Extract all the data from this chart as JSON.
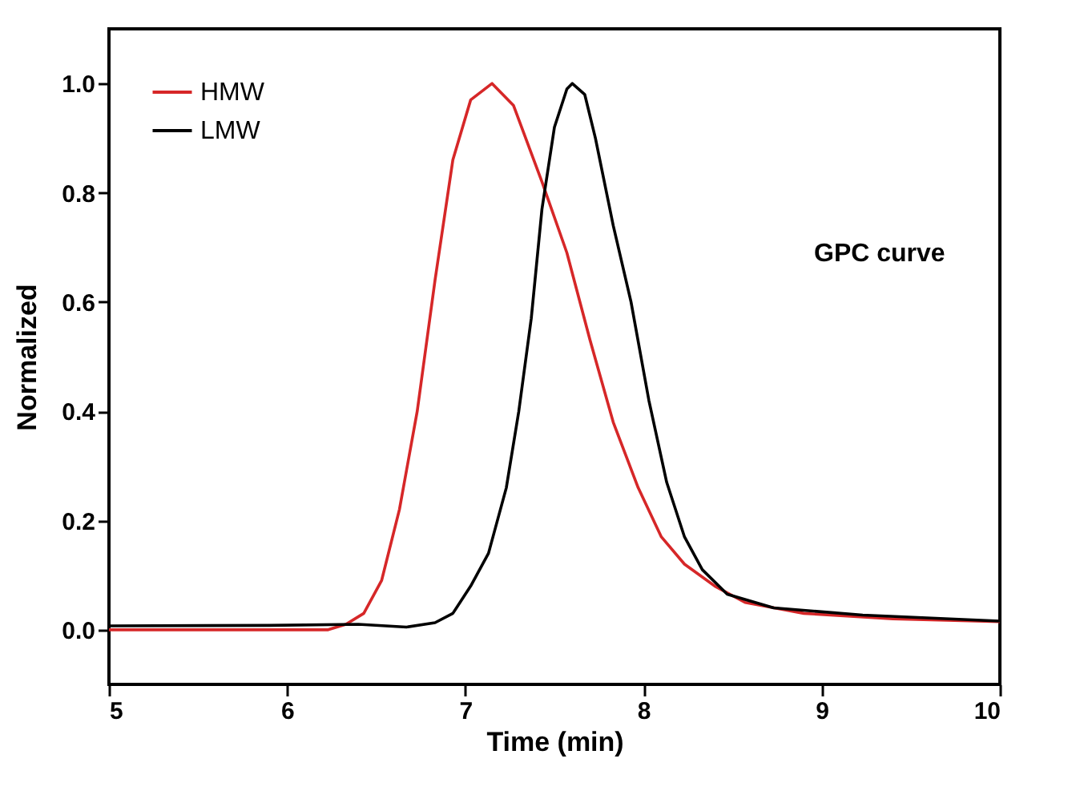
{
  "chart_data": {
    "type": "line",
    "xlabel": "Time (min)",
    "ylabel": "Normalized",
    "xlim": [
      5,
      10
    ],
    "xticks": [
      5,
      6,
      7,
      8,
      9,
      10
    ],
    "ylim": [
      -0.1,
      1.1
    ],
    "yticks": [
      {
        "value": 0,
        "label": "0.0"
      },
      {
        "value": 0.2,
        "label": "0.2"
      },
      {
        "value": 0.4,
        "label": "0.4"
      },
      {
        "value": 0.6,
        "label": "0.6"
      },
      {
        "value": 0.8,
        "label": "0.8"
      },
      {
        "value": 1,
        "label": "1.0"
      }
    ],
    "grid": false,
    "legend": "top left",
    "line_style": "solid",
    "marker": "none",
    "annotations": [
      "GPC curve"
    ],
    "series": [
      {
        "name": "HMW",
        "color": "#d62728",
        "x": [
          5.0,
          6.23,
          6.33,
          6.43,
          6.53,
          6.63,
          6.73,
          6.83,
          6.93,
          7.03,
          7.15,
          7.27,
          7.43,
          7.57,
          7.7,
          7.83,
          7.97,
          8.1,
          8.23,
          8.4,
          8.57,
          8.9,
          9.4,
          10.0
        ],
        "values": [
          0.0,
          0.0,
          0.01,
          0.03,
          0.09,
          0.22,
          0.4,
          0.64,
          0.86,
          0.97,
          1.0,
          0.96,
          0.82,
          0.69,
          0.53,
          0.38,
          0.26,
          0.17,
          0.12,
          0.08,
          0.05,
          0.03,
          0.02,
          0.015
        ]
      },
      {
        "name": "LMW",
        "color": "#000000",
        "x": [
          5.0,
          5.9,
          6.4,
          6.67,
          6.83,
          6.93,
          7.03,
          7.13,
          7.23,
          7.3,
          7.37,
          7.43,
          7.5,
          7.57,
          7.6,
          7.67,
          7.73,
          7.83,
          7.93,
          8.03,
          8.13,
          8.23,
          8.33,
          8.47,
          8.73,
          9.23,
          10.0
        ],
        "values": [
          0.007,
          0.008,
          0.01,
          0.005,
          0.013,
          0.03,
          0.08,
          0.14,
          0.26,
          0.4,
          0.57,
          0.77,
          0.92,
          0.99,
          1.0,
          0.98,
          0.9,
          0.74,
          0.6,
          0.42,
          0.27,
          0.17,
          0.11,
          0.065,
          0.04,
          0.027,
          0.016
        ]
      }
    ]
  }
}
